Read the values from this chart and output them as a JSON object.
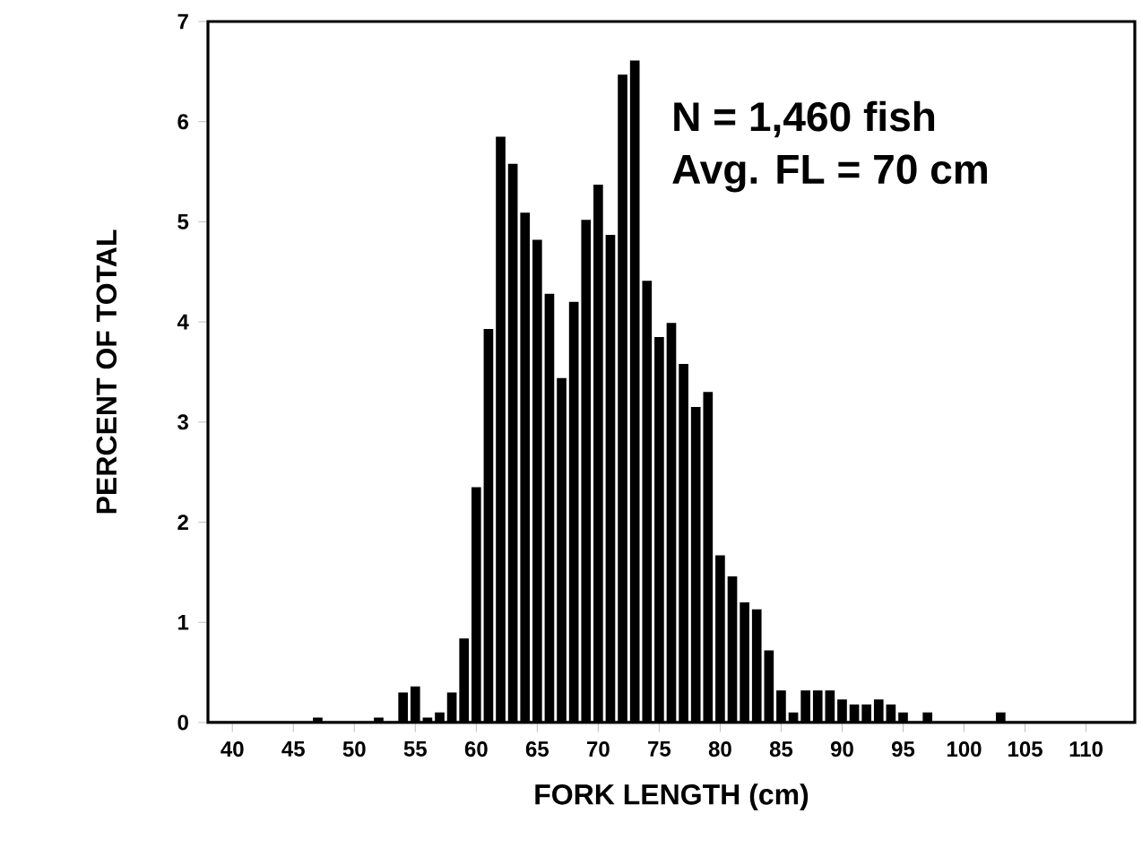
{
  "chart_data": {
    "type": "histogram",
    "xlabel": "FORK LENGTH (cm)",
    "ylabel": "PERCENT OF TOTAL",
    "annotations": [
      "N = 1,460 fish",
      "Avg. FL = 70 cm"
    ],
    "bins": [
      46.5,
      47.5,
      48.5,
      49.5,
      50.5,
      51.5,
      52.5,
      53.5,
      54.5,
      55.5,
      56.5,
      57.5,
      58.5,
      59.5,
      60.5,
      61.5,
      62.5,
      63.5,
      64.5,
      65.5,
      66.5,
      67.5,
      68.5,
      69.5,
      70.5,
      71.5,
      72.5,
      73.5,
      74.5,
      75.5,
      76.5,
      77.5,
      78.5,
      79.5,
      80.5,
      81.5,
      82.5,
      83.5,
      84.5,
      85.5,
      86.5,
      87.5,
      88.5,
      89.5,
      90.5,
      91.5,
      92.5,
      93.5,
      94.5,
      95.5,
      96.5,
      97.5,
      98.5,
      99.5,
      100.5,
      101.5,
      102.5,
      103.5
    ],
    "values": [
      0.05,
      0,
      0,
      0,
      0,
      0.05,
      0,
      0.3,
      0.36,
      0.05,
      0.1,
      0.3,
      0.84,
      2.35,
      3.93,
      5.85,
      5.58,
      5.09,
      4.82,
      4.28,
      3.44,
      4.2,
      5.02,
      5.37,
      4.87,
      6.47,
      6.61,
      4.41,
      3.85,
      3.99,
      3.58,
      3.15,
      3.3,
      1.67,
      1.46,
      1.2,
      1.13,
      0.72,
      0.32,
      0.1,
      0.32,
      0.32,
      0.32,
      0.23,
      0.18,
      0.18,
      0.23,
      0.18,
      0.1,
      0,
      0.1,
      0,
      0,
      0,
      0,
      0,
      0.1
    ],
    "color": "#000000",
    "xlim": [
      38,
      114
    ],
    "ylim": [
      0,
      7
    ],
    "xticks": [
      40,
      45,
      50,
      55,
      60,
      65,
      70,
      75,
      80,
      85,
      90,
      95,
      100,
      105,
      110
    ],
    "yticks": [
      0,
      1,
      2,
      3,
      4,
      5,
      6,
      7
    ],
    "grid": false
  }
}
